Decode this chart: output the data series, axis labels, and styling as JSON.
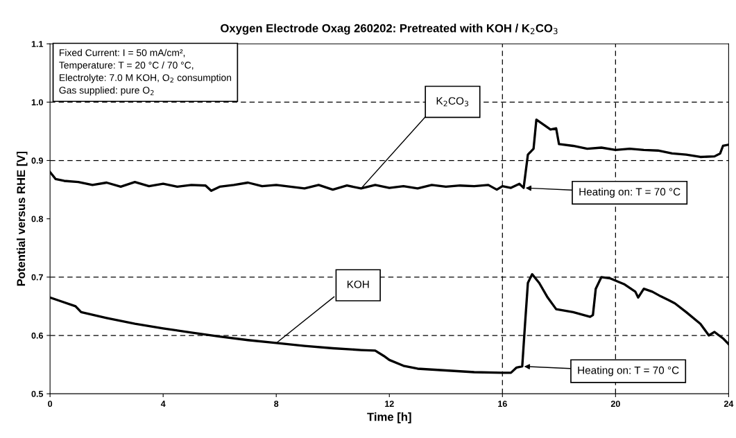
{
  "chart_data": {
    "type": "line",
    "title": "Oxygen Electrode Oxag 260202: Pretreated with KOH / K$_{2}$CO$_{3}$",
    "xlabel": "Time [h]",
    "ylabel": "Potential versus RHE [V]",
    "xlim": [
      0,
      24
    ],
    "xticks": [
      0,
      4,
      8,
      12,
      16,
      20,
      24
    ],
    "ylim": [
      0.5,
      1.1
    ],
    "yticks": [
      0.5,
      0.6,
      0.7,
      0.8,
      0.9,
      {
        "value": 1.0,
        "label": "1.0"
      },
      1.1
    ],
    "grid": false,
    "legend": false,
    "marker": "none",
    "line_style": "solid",
    "series": [
      {
        "name": "K$_{2}$CO$_{3}$",
        "color": "#000000",
        "x": [
          0,
          0.2,
          0.5,
          1,
          1.5,
          2,
          2.5,
          3,
          3.5,
          4,
          4.5,
          5,
          5.5,
          5.7,
          6,
          6.5,
          7,
          7.5,
          8,
          8.5,
          9,
          9.5,
          10,
          10.5,
          11,
          11.5,
          12,
          12.5,
          13,
          13.5,
          14,
          14.5,
          15,
          15.5,
          15.8,
          16,
          16.3,
          16.6,
          16.75,
          16.9,
          17.1,
          17.2,
          17.5,
          17.7,
          17.9,
          18,
          18.5,
          19,
          19.5,
          20,
          20.5,
          21,
          21.5,
          22,
          22.5,
          23,
          23.5,
          23.7,
          23.8,
          24
        ],
        "values": [
          0.88,
          0.868,
          0.865,
          0.863,
          0.858,
          0.862,
          0.855,
          0.863,
          0.856,
          0.86,
          0.855,
          0.858,
          0.857,
          0.848,
          0.855,
          0.858,
          0.862,
          0.856,
          0.858,
          0.855,
          0.852,
          0.858,
          0.85,
          0.857,
          0.852,
          0.858,
          0.853,
          0.856,
          0.852,
          0.858,
          0.855,
          0.857,
          0.856,
          0.858,
          0.85,
          0.856,
          0.853,
          0.86,
          0.853,
          0.91,
          0.92,
          0.97,
          0.96,
          0.953,
          0.955,
          0.928,
          0.925,
          0.92,
          0.922,
          0.918,
          0.92,
          0.918,
          0.917,
          0.912,
          0.91,
          0.906,
          0.907,
          0.912,
          0.925,
          0.927
        ]
      },
      {
        "name": "KOH",
        "color": "#000000",
        "x": [
          0,
          0.3,
          0.9,
          1.1,
          2,
          3,
          4,
          5,
          6,
          7,
          8,
          9,
          10,
          11,
          11.5,
          11.8,
          12,
          12.5,
          13,
          14,
          15,
          16,
          16.3,
          16.5,
          16.7,
          16.8,
          16.9,
          17.05,
          17.3,
          17.6,
          17.9,
          18.5,
          19.1,
          19.2,
          19.3,
          19.5,
          19.8,
          20.3,
          20.7,
          20.8,
          21,
          21.3,
          21.6,
          21.9,
          22.1,
          22.5,
          23,
          23.3,
          23.5,
          23.8,
          24
        ],
        "values": [
          0.665,
          0.66,
          0.65,
          0.64,
          0.63,
          0.62,
          0.612,
          0.605,
          0.598,
          0.592,
          0.587,
          0.582,
          0.578,
          0.575,
          0.574,
          0.565,
          0.558,
          0.548,
          0.543,
          0.54,
          0.537,
          0.536,
          0.536,
          0.545,
          0.547,
          0.62,
          0.69,
          0.705,
          0.69,
          0.665,
          0.645,
          0.64,
          0.632,
          0.635,
          0.68,
          0.7,
          0.698,
          0.688,
          0.675,
          0.665,
          0.68,
          0.675,
          0.667,
          0.66,
          0.655,
          0.64,
          0.62,
          0.6,
          0.606,
          0.595,
          0.585
        ]
      }
    ],
    "ref_lines": [
      {
        "axis": "y",
        "value": 0.6,
        "line_style": "dashed",
        "color": "#000000"
      },
      {
        "axis": "y",
        "value": 0.7,
        "line_style": "dashed",
        "color": "#000000"
      },
      {
        "axis": "y",
        "value": 0.9,
        "line_style": "dashed",
        "color": "#000000"
      },
      {
        "axis": "y",
        "value": 1.0,
        "line_style": "dashed",
        "color": "#000000"
      },
      {
        "axis": "x",
        "value": 16,
        "line_style": "dashed",
        "color": "#000000"
      },
      {
        "axis": "x",
        "value": 20,
        "line_style": "dashed",
        "color": "#000000"
      }
    ],
    "annotations": [
      "Fixed Current: I = 50 mA/cm²,\nTemperature: T = 20 °C / 70 °C,\nElectrolyte: 7.0 M KOH, O$_{2}$ consumption\nGas supplied: pure O$_{2}$",
      "Heating on: T = 70 °C",
      "Heating on: T = 70 °C"
    ]
  }
}
